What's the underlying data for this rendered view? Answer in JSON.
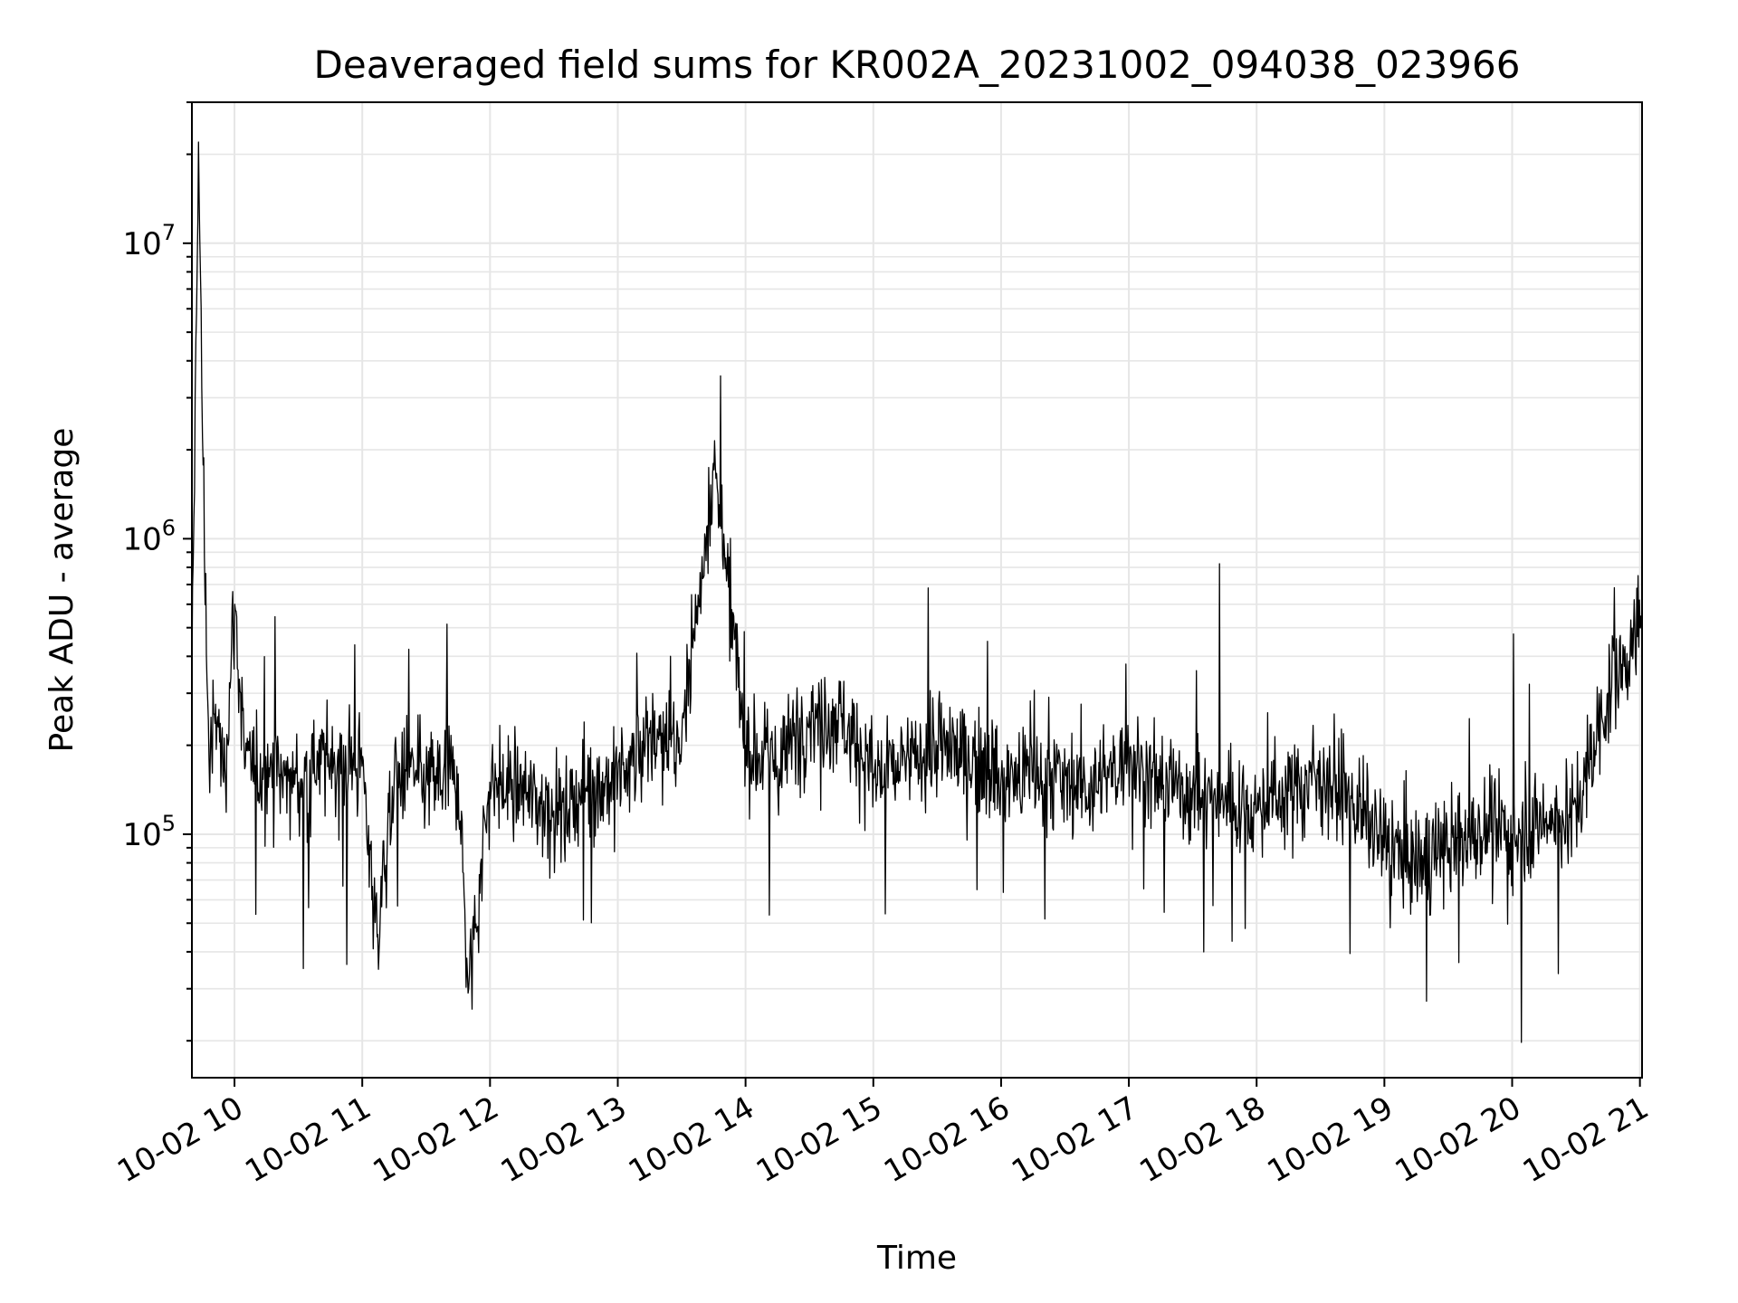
{
  "chart_data": {
    "type": "line",
    "title": "Deaveraged field sums for KR002A_20231002_094038_023966",
    "xlabel": "Time",
    "ylabel": "Peak ADU - average",
    "yscale": "log",
    "xlim": [
      "2023-10-02 09:40",
      "2023-10-02 21:01"
    ],
    "ylim": [
      15000,
      30000000
    ],
    "grid": true,
    "line_color": "#000000",
    "grid_color": "#e6e6e6",
    "x_ticks": [
      "10-02 10",
      "10-02 11",
      "10-02 12",
      "10-02 13",
      "10-02 14",
      "10-02 15",
      "10-02 16",
      "10-02 17",
      "10-02 18",
      "10-02 19",
      "10-02 20",
      "10-02 21"
    ],
    "y_ticks": [
      {
        "value": 100000,
        "base": "10",
        "exp": "5"
      },
      {
        "value": 1000000,
        "base": "10",
        "exp": "6"
      },
      {
        "value": 10000000,
        "base": "10",
        "exp": "7"
      }
    ],
    "series": [
      {
        "x": [
          "2023-10-02 09:40",
          "2023-10-02 09:43",
          "2023-10-02 09:45",
          "2023-10-02 09:48",
          "2023-10-02 09:52",
          "2023-10-02 09:55",
          "2023-10-02 10:00",
          "2023-10-02 10:05",
          "2023-10-02 10:15",
          "2023-10-02 10:30",
          "2023-10-02 10:45",
          "2023-10-02 11:00",
          "2023-10-02 11:07",
          "2023-10-02 11:15",
          "2023-10-02 11:30",
          "2023-10-02 11:45",
          "2023-10-02 11:50",
          "2023-10-02 12:00",
          "2023-10-02 12:15",
          "2023-10-02 12:30",
          "2023-10-02 12:45",
          "2023-10-02 13:00",
          "2023-10-02 13:15",
          "2023-10-02 13:30",
          "2023-10-02 13:45",
          "2023-10-02 14:00",
          "2023-10-02 14:15",
          "2023-10-02 14:30",
          "2023-10-02 14:45",
          "2023-10-02 15:00",
          "2023-10-02 15:15",
          "2023-10-02 15:30",
          "2023-10-02 15:45",
          "2023-10-02 16:00",
          "2023-10-02 16:15",
          "2023-10-02 16:30",
          "2023-10-02 16:45",
          "2023-10-02 17:00",
          "2023-10-02 17:15",
          "2023-10-02 17:30",
          "2023-10-02 17:45",
          "2023-10-02 18:00",
          "2023-10-02 18:15",
          "2023-10-02 18:30",
          "2023-10-02 18:45",
          "2023-10-02 19:00",
          "2023-10-02 19:15",
          "2023-10-02 19:30",
          "2023-10-02 19:45",
          "2023-10-02 20:00",
          "2023-10-02 20:15",
          "2023-10-02 20:30",
          "2023-10-02 20:45",
          "2023-10-02 21:00"
        ],
        "y": [
          300000,
          22000000,
          2200000,
          180000,
          250000,
          150000,
          600000,
          170000,
          160000,
          150000,
          180000,
          170000,
          45000,
          160000,
          150000,
          160000,
          30000,
          150000,
          140000,
          120000,
          140000,
          150000,
          220000,
          200000,
          1800000,
          200000,
          170000,
          260000,
          250000,
          160000,
          170000,
          200000,
          180000,
          160000,
          150000,
          160000,
          140000,
          190000,
          150000,
          140000,
          130000,
          120000,
          140000,
          160000,
          130000,
          90000,
          80000,
          90000,
          100000,
          100000,
          110000,
          120000,
          300000,
          500000
        ]
      }
    ]
  }
}
